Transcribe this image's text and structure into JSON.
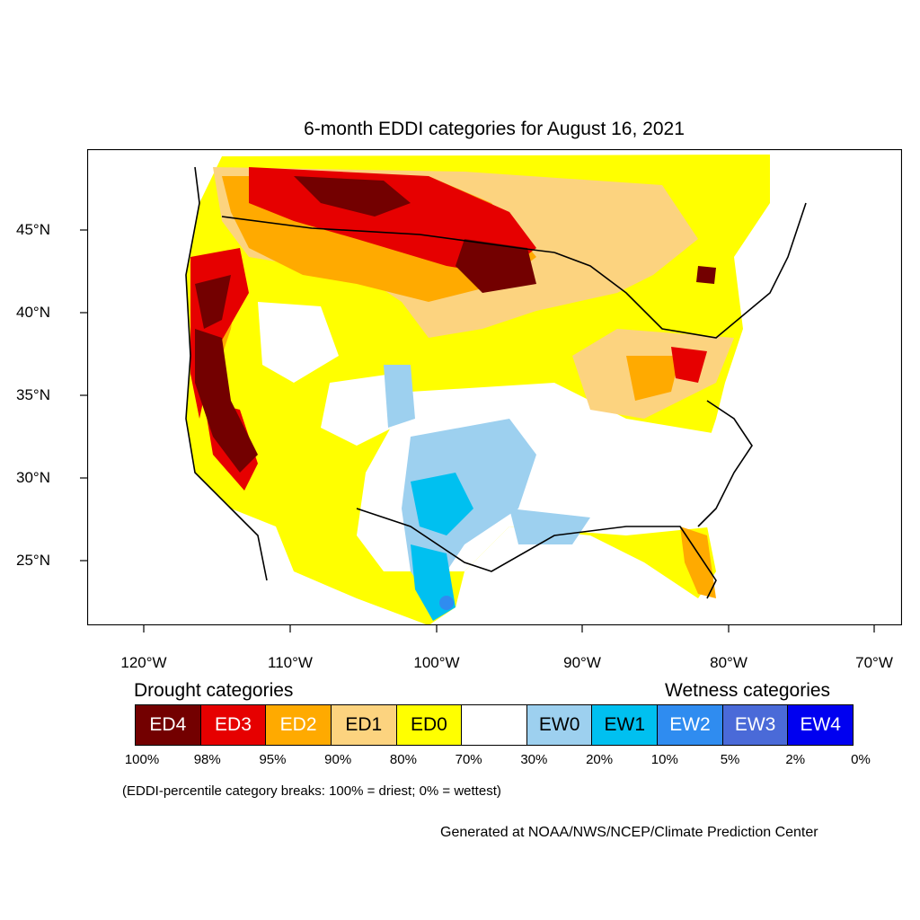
{
  "title": "6-month EDDI categories for August 16, 2021",
  "lat_labels": [
    "45°N",
    "40°N",
    "35°N",
    "30°N",
    "25°N"
  ],
  "lon_labels": [
    "120°W",
    "110°W",
    "100°W",
    "90°W",
    "80°W",
    "70°W"
  ],
  "legend": {
    "drought_title": "Drought categories",
    "wetness_title": "Wetness categories",
    "categories": [
      {
        "label": "ED4",
        "color": "#730000",
        "text_color": "#ffffff"
      },
      {
        "label": "ED3",
        "color": "#e60000",
        "text_color": "#ffffff"
      },
      {
        "label": "ED2",
        "color": "#ffaa00",
        "text_color": "#ffffff"
      },
      {
        "label": "ED1",
        "color": "#fcd37f",
        "text_color": "#000000"
      },
      {
        "label": "ED0",
        "color": "#ffff00",
        "text_color": "#000000"
      },
      {
        "label": "",
        "color": "#ffffff",
        "text_color": "#000000"
      },
      {
        "label": "EW0",
        "color": "#9dd0ef",
        "text_color": "#000000"
      },
      {
        "label": "EW1",
        "color": "#00c0f0",
        "text_color": "#000000"
      },
      {
        "label": "EW2",
        "color": "#2f8cf0",
        "text_color": "#ffffff"
      },
      {
        "label": "EW3",
        "color": "#4a6ad8",
        "text_color": "#ffffff"
      },
      {
        "label": "EW4",
        "color": "#0000f0",
        "text_color": "#ffffff"
      }
    ],
    "breaks": [
      "100%",
      "98%",
      "95%",
      "90%",
      "80%",
      "70%",
      "30%",
      "20%",
      "10%",
      "5%",
      "2%",
      "0%"
    ]
  },
  "note": "(EDDI-percentile category breaks: 100% = driest; 0% = wettest)",
  "credit": "Generated at NOAA/NWS/NCEP/Climate Prediction Center"
}
